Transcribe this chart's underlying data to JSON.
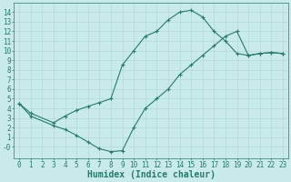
{
  "title": "",
  "xlabel": "Humidex (Indice chaleur)",
  "ylabel": "",
  "background_color": "#c8eaea",
  "grid_color": "#b0d4d4",
  "line_color": "#2a7a6a",
  "marker": "+",
  "xlim": [
    -0.5,
    23.5
  ],
  "ylim": [
    -1.2,
    15
  ],
  "xticks": [
    0,
    1,
    2,
    3,
    4,
    5,
    6,
    7,
    8,
    9,
    10,
    11,
    12,
    13,
    14,
    15,
    16,
    17,
    18,
    19,
    20,
    21,
    22,
    23
  ],
  "yticks": [
    0,
    1,
    2,
    3,
    4,
    5,
    6,
    7,
    8,
    9,
    10,
    11,
    12,
    13,
    14
  ],
  "curve1_x": [
    0,
    1,
    3,
    4,
    5,
    6,
    7,
    8,
    9,
    10,
    11,
    12,
    13,
    14,
    15,
    16,
    17,
    18,
    19,
    20,
    21,
    22,
    23
  ],
  "curve1_y": [
    4.5,
    3.5,
    2.5,
    3.2,
    3.8,
    4.2,
    4.6,
    5.0,
    8.5,
    10.0,
    11.5,
    12.0,
    13.2,
    14.0,
    14.2,
    13.5,
    12.0,
    11.0,
    9.7,
    9.5,
    9.7,
    9.8,
    9.7
  ],
  "curve2_x": [
    0,
    1,
    3,
    4,
    5,
    6,
    7,
    8,
    9,
    10,
    11,
    12,
    13,
    14,
    15,
    16,
    17,
    18,
    19,
    20,
    21,
    22,
    23
  ],
  "curve2_y": [
    4.5,
    3.2,
    2.2,
    1.8,
    1.2,
    0.5,
    -0.2,
    -0.5,
    -0.4,
    2.0,
    4.0,
    5.0,
    6.0,
    7.5,
    8.5,
    9.5,
    10.5,
    11.5,
    12.0,
    9.5,
    9.7,
    9.8,
    9.7
  ],
  "xlabel_fontsize": 7,
  "tick_fontsize": 5.5,
  "linewidth": 0.8,
  "markersize": 3,
  "figsize": [
    3.2,
    2.0
  ],
  "dpi": 100
}
